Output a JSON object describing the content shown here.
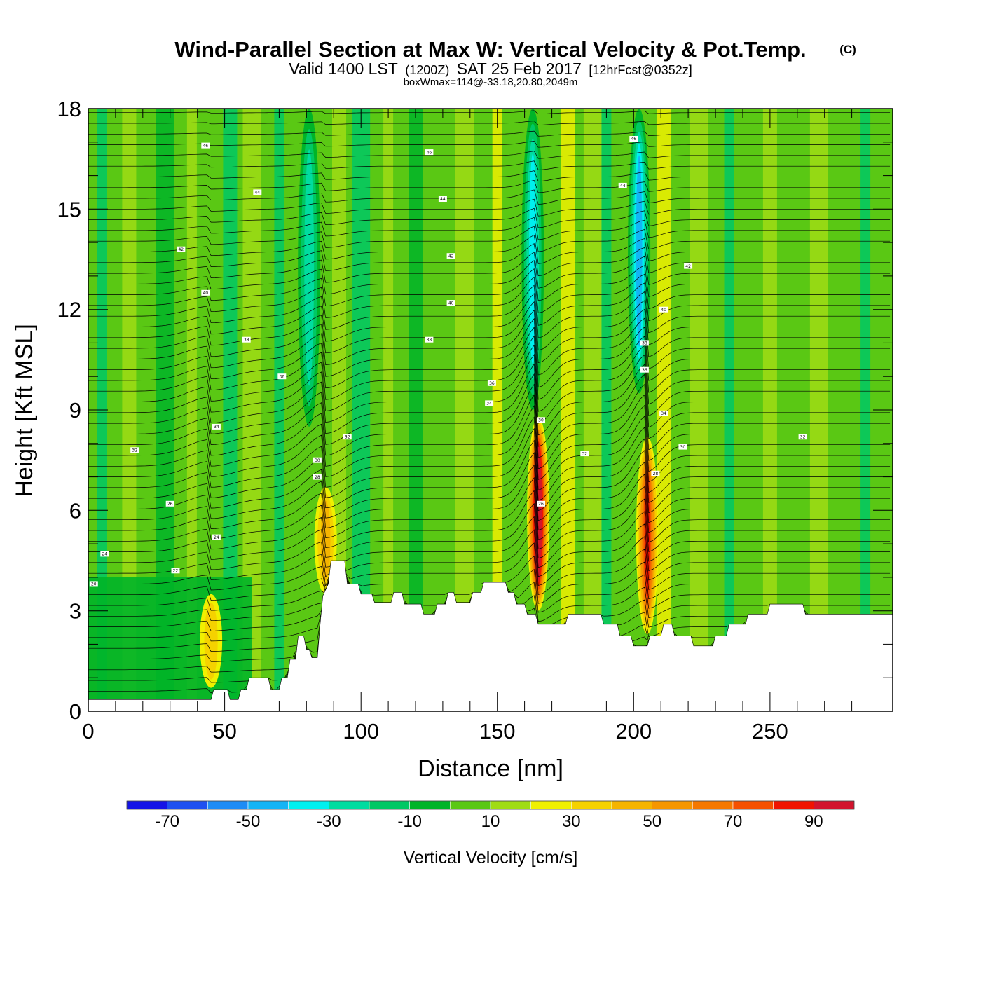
{
  "header": {
    "title": "Wind-Parallel Section at Max W: Vertical Velocity & Pot.Temp.",
    "copyright": "(C)",
    "valid_prefix": "Valid 1400 LST",
    "valid_utc": "(1200Z)",
    "valid_date": "SAT 25 Feb 2017",
    "forecast": "[12hrFcst@0352z]",
    "box_info": "boxWmax=114@-33.18,20.80,2049m"
  },
  "chart_data": {
    "type": "heatmap",
    "title": "Wind-Parallel Section at Max W: Vertical Velocity & Pot.Temp.",
    "xlabel": "Distance [nm]",
    "ylabel": "Height [Kft MSL]",
    "xlim": [
      0,
      295
    ],
    "ylim": [
      0,
      18
    ],
    "x_ticks": [
      0,
      50,
      100,
      150,
      200,
      250
    ],
    "y_ticks": [
      0,
      3,
      6,
      9,
      12,
      15,
      18
    ],
    "x_tick_labels": [
      "0",
      "50",
      "100",
      "150",
      "200",
      "250"
    ],
    "y_tick_labels": [
      "0",
      "3",
      "6",
      "9",
      "12",
      "15",
      "18"
    ],
    "colorbar": {
      "label": "Vertical Velocity [cm/s]",
      "boundaries": [
        -80,
        -70,
        -60,
        -50,
        -40,
        -30,
        -20,
        -10,
        0,
        10,
        20,
        30,
        40,
        50,
        60,
        70,
        80,
        90,
        100
      ],
      "tick_labels": [
        "-70",
        "-50",
        "-30",
        "-10",
        "10",
        "30",
        "50",
        "70",
        "90"
      ],
      "colors": [
        "#1414e6",
        "#1e50f0",
        "#1e8cf5",
        "#14b4f5",
        "#00f0f0",
        "#00dca0",
        "#00c864",
        "#00b428",
        "#5ac814",
        "#a0dc14",
        "#f0f000",
        "#f5d200",
        "#f5b400",
        "#f59600",
        "#f57800",
        "#f55000",
        "#f01400",
        "#d2142d"
      ]
    },
    "terrain": [
      [
        0,
        0.35
      ],
      [
        2,
        0.35
      ],
      [
        45,
        0.35
      ],
      [
        46,
        0.65
      ],
      [
        51,
        0.65
      ],
      [
        52,
        0.35
      ],
      [
        55,
        0.35
      ],
      [
        56,
        0.65
      ],
      [
        58,
        0.65
      ],
      [
        59,
        1.0
      ],
      [
        66,
        1.0
      ],
      [
        67,
        0.65
      ],
      [
        70,
        0.65
      ],
      [
        71,
        1.0
      ],
      [
        73,
        1.0
      ],
      [
        74,
        1.55
      ],
      [
        76,
        1.55
      ],
      [
        77,
        2.25
      ],
      [
        79,
        2.25
      ],
      [
        80,
        1.85
      ],
      [
        81,
        1.85
      ],
      [
        82,
        1.6
      ],
      [
        84,
        1.6
      ],
      [
        85,
        2.6
      ],
      [
        86,
        3.45
      ],
      [
        88,
        3.8
      ],
      [
        89,
        4.5
      ],
      [
        94,
        4.5
      ],
      [
        95,
        3.8
      ],
      [
        99,
        3.8
      ],
      [
        100,
        3.5
      ],
      [
        104,
        3.5
      ],
      [
        105,
        3.25
      ],
      [
        111,
        3.25
      ],
      [
        112,
        3.55
      ],
      [
        115,
        3.55
      ],
      [
        116,
        3.2
      ],
      [
        122,
        3.2
      ],
      [
        123,
        2.9
      ],
      [
        127,
        2.9
      ],
      [
        128,
        3.2
      ],
      [
        131,
        3.2
      ],
      [
        132,
        3.55
      ],
      [
        134,
        3.55
      ],
      [
        135,
        3.25
      ],
      [
        140,
        3.25
      ],
      [
        141,
        3.55
      ],
      [
        144,
        3.55
      ],
      [
        145,
        3.85
      ],
      [
        153,
        3.85
      ],
      [
        154,
        3.55
      ],
      [
        156,
        3.55
      ],
      [
        157,
        3.2
      ],
      [
        160,
        3.2
      ],
      [
        161,
        2.9
      ],
      [
        164,
        2.9
      ],
      [
        165,
        2.6
      ],
      [
        175,
        2.6
      ],
      [
        176,
        2.9
      ],
      [
        188,
        2.9
      ],
      [
        189,
        2.6
      ],
      [
        194,
        2.6
      ],
      [
        195,
        2.25
      ],
      [
        199,
        2.25
      ],
      [
        200,
        1.95
      ],
      [
        205,
        1.95
      ],
      [
        206,
        2.25
      ],
      [
        210,
        2.25
      ],
      [
        211,
        2.6
      ],
      [
        214,
        2.6
      ],
      [
        215,
        2.25
      ],
      [
        221,
        2.25
      ],
      [
        222,
        1.95
      ],
      [
        229,
        1.95
      ],
      [
        230,
        2.25
      ],
      [
        234,
        2.25
      ],
      [
        235,
        2.6
      ],
      [
        241,
        2.6
      ],
      [
        242,
        2.9
      ],
      [
        249,
        2.9
      ],
      [
        250,
        3.2
      ],
      [
        262,
        3.2
      ],
      [
        263,
        2.9
      ],
      [
        295,
        2.9
      ]
    ],
    "updraft_bands": [
      {
        "x": 165,
        "y_bottom": 3.0,
        "y_top": 8.8,
        "peak": 114
      },
      {
        "x": 205,
        "y_bottom": 2.3,
        "y_top": 8.2,
        "peak": 80
      },
      {
        "x": 87,
        "y_bottom": 3.5,
        "y_top": 6.7,
        "peak": 40
      },
      {
        "x": 45,
        "y_bottom": 0.7,
        "y_top": 3.5,
        "peak": 35
      }
    ],
    "downdraft_bands": [
      {
        "x": 163,
        "y_bottom": 9.0,
        "y_top": 18.0,
        "peak": -45
      },
      {
        "x": 202,
        "y_bottom": 9.5,
        "y_top": 18.0,
        "peak": -55
      },
      {
        "x": 81,
        "y_bottom": 8.5,
        "y_top": 18.0,
        "peak": -30
      }
    ],
    "theta_contour_labels": [
      {
        "x": 43,
        "y": 16.9,
        "text": "46"
      },
      {
        "x": 125,
        "y": 16.7,
        "text": "46"
      },
      {
        "x": 62,
        "y": 15.5,
        "text": "44"
      },
      {
        "x": 130,
        "y": 15.3,
        "text": "44"
      },
      {
        "x": 196,
        "y": 15.7,
        "text": "44"
      },
      {
        "x": 200,
        "y": 17.1,
        "text": "46"
      },
      {
        "x": 34,
        "y": 13.8,
        "text": "42"
      },
      {
        "x": 133,
        "y": 13.6,
        "text": "42"
      },
      {
        "x": 220,
        "y": 13.3,
        "text": "42"
      },
      {
        "x": 43,
        "y": 12.5,
        "text": "40"
      },
      {
        "x": 133,
        "y": 12.2,
        "text": "40"
      },
      {
        "x": 211,
        "y": 12.0,
        "text": "40"
      },
      {
        "x": 58,
        "y": 11.1,
        "text": "38"
      },
      {
        "x": 125,
        "y": 11.1,
        "text": "38"
      },
      {
        "x": 204,
        "y": 11.0,
        "text": "38"
      },
      {
        "x": 71,
        "y": 10.0,
        "text": "36"
      },
      {
        "x": 148,
        "y": 9.8,
        "text": "36"
      },
      {
        "x": 204,
        "y": 10.2,
        "text": "36"
      },
      {
        "x": 147,
        "y": 9.2,
        "text": "34"
      },
      {
        "x": 47,
        "y": 8.5,
        "text": "34"
      },
      {
        "x": 211,
        "y": 8.9,
        "text": "34"
      },
      {
        "x": 17,
        "y": 7.8,
        "text": "32"
      },
      {
        "x": 95,
        "y": 8.2,
        "text": "32"
      },
      {
        "x": 182,
        "y": 7.7,
        "text": "32"
      },
      {
        "x": 262,
        "y": 8.2,
        "text": "32"
      },
      {
        "x": 84,
        "y": 7.5,
        "text": "30"
      },
      {
        "x": 166,
        "y": 8.7,
        "text": "30"
      },
      {
        "x": 218,
        "y": 7.9,
        "text": "30"
      },
      {
        "x": 84,
        "y": 7.0,
        "text": "28"
      },
      {
        "x": 208,
        "y": 7.1,
        "text": "28"
      },
      {
        "x": 30,
        "y": 6.2,
        "text": "26"
      },
      {
        "x": 166,
        "y": 6.2,
        "text": "26"
      },
      {
        "x": 47,
        "y": 5.2,
        "text": "24"
      },
      {
        "x": 6,
        "y": 4.7,
        "text": "24"
      },
      {
        "x": 32,
        "y": 4.2,
        "text": "22"
      },
      {
        "x": 2,
        "y": 3.8,
        "text": "20"
      }
    ]
  }
}
